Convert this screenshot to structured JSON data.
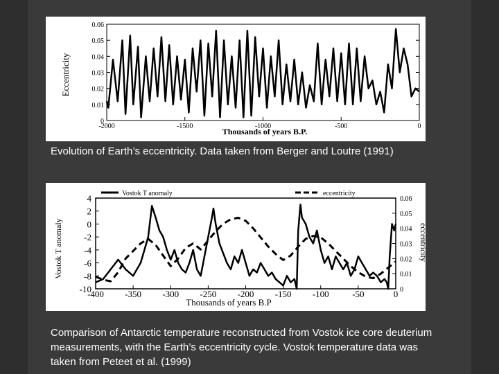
{
  "captions": {
    "top": "Evolution of Earth’s eccentricity.  Data taken from Berger and Loutre (1991)",
    "bottom": "Comparison of Antarctic temperature reconstructed from Vostok ice core deuterium measurements, with the Earth’s eccentricity cycle. Vostok temperature data was taken from Peteet et al. (1999)"
  },
  "chart_data": [
    {
      "type": "line",
      "xlabel": "Thousands of years B.P.",
      "ylabel": "Eccentricity",
      "xlim": [
        -2000,
        0
      ],
      "ylim": [
        0,
        0.06
      ],
      "xticks": [
        "-2000",
        "-1500",
        "-1000",
        "-500",
        "0"
      ],
      "yticks": [
        "0",
        "0.01",
        "0.02",
        "0.03",
        "0.04",
        "0.05",
        "0.06"
      ],
      "series": [
        {
          "color": "#000000",
          "x": [
            -2000,
            -1990,
            -1960,
            -1930,
            -1900,
            -1880,
            -1850,
            -1830,
            -1800,
            -1780,
            -1750,
            -1725,
            -1700,
            -1675,
            -1650,
            -1625,
            -1600,
            -1575,
            -1550,
            -1525,
            -1500,
            -1475,
            -1450,
            -1425,
            -1400,
            -1375,
            -1350,
            -1325,
            -1300,
            -1275,
            -1250,
            -1225,
            -1200,
            -1175,
            -1150,
            -1125,
            -1100,
            -1075,
            -1050,
            -1025,
            -1000,
            -975,
            -950,
            -925,
            -900,
            -875,
            -850,
            -825,
            -800,
            -775,
            -750,
            -725,
            -700,
            -675,
            -650,
            -625,
            -600,
            -575,
            -550,
            -525,
            -500,
            -475,
            -450,
            -425,
            -400,
            -375,
            -350,
            -325,
            -300,
            -275,
            -250,
            -225,
            -200,
            -175,
            -150,
            -125,
            -100,
            -75,
            -50,
            -25,
            0
          ],
          "values": [
            0.012,
            0.008,
            0.038,
            0.012,
            0.05,
            0.004,
            0.053,
            0.01,
            0.046,
            0.002,
            0.04,
            0.012,
            0.045,
            0.015,
            0.052,
            0.012,
            0.047,
            0.01,
            0.04,
            0.013,
            0.038,
            0.005,
            0.045,
            0.018,
            0.05,
            0.003,
            0.048,
            0.015,
            0.056,
            0.002,
            0.05,
            0.01,
            0.04,
            0.008,
            0.05,
            0.002,
            0.056,
            0.003,
            0.052,
            0.015,
            0.045,
            0.008,
            0.04,
            0.015,
            0.05,
            0.01,
            0.035,
            0.012,
            0.038,
            0.01,
            0.03,
            0.008,
            0.022,
            0.012,
            0.048,
            0.01,
            0.038,
            0.015,
            0.045,
            0.012,
            0.042,
            0.01,
            0.048,
            0.01,
            0.045,
            0.012,
            0.04,
            0.02,
            0.025,
            0.01,
            0.018,
            0.005,
            0.035,
            0.02,
            0.057,
            0.03,
            0.045,
            0.035,
            0.015,
            0.02,
            0.018
          ]
        }
      ]
    },
    {
      "type": "line",
      "xlabel": "Thousands of years B.P",
      "ylabel": "Vostok T anomaly",
      "y2label": "eccentricity",
      "xlim": [
        -400,
        0
      ],
      "ylim": [
        -10,
        4
      ],
      "y2lim": [
        0,
        0.06
      ],
      "xticks": [
        "-400",
        "-350",
        "-300",
        "-250",
        "-200",
        "-150",
        "-100",
        "-50",
        "0"
      ],
      "yticks": [
        "-10",
        "-8",
        "-6",
        "-4",
        "-2",
        "0",
        "2",
        "4"
      ],
      "y2ticks": [
        "0",
        "0.01",
        "0.02",
        "0.03",
        "0.04",
        "0.05",
        "0.06"
      ],
      "legend": [
        "Vostok T anomaly",
        "eccentricity"
      ],
      "legend_position": "top",
      "series": [
        {
          "name": "Vostok T anomaly",
          "axis": "left",
          "style": "solid",
          "color": "#000000",
          "x": [
            -400,
            -390,
            -380,
            -370,
            -360,
            -350,
            -340,
            -335,
            -330,
            -325,
            -320,
            -315,
            -310,
            -305,
            -300,
            -295,
            -290,
            -285,
            -280,
            -275,
            -270,
            -265,
            -260,
            -255,
            -250,
            -245,
            -243,
            -240,
            -235,
            -230,
            -225,
            -220,
            -215,
            -210,
            -205,
            -200,
            -195,
            -190,
            -185,
            -180,
            -175,
            -170,
            -165,
            -160,
            -155,
            -150,
            -145,
            -140,
            -135,
            -132,
            -130,
            -127,
            -125,
            -120,
            -115,
            -110,
            -105,
            -100,
            -95,
            -90,
            -85,
            -80,
            -75,
            -70,
            -65,
            -60,
            -55,
            -50,
            -45,
            -40,
            -35,
            -30,
            -25,
            -20,
            -15,
            -12,
            -10,
            -8,
            -5,
            -2,
            0
          ],
          "values": [
            -9,
            -8.5,
            -7,
            -5.5,
            -7,
            -8,
            -6,
            -4,
            -2,
            2.8,
            1,
            -1,
            -2,
            -4,
            -5.5,
            -4,
            -6,
            -7,
            -7.5,
            -6,
            -4,
            -7,
            -8,
            -5,
            -2,
            1,
            2.4,
            0,
            -3,
            -4.5,
            -6,
            -7,
            -5,
            -6,
            -4,
            -6,
            -8,
            -7,
            -7.5,
            -6,
            -7,
            -8,
            -7.5,
            -8.5,
            -9,
            -9.5,
            -8,
            -9,
            -8.5,
            -10,
            -1,
            3,
            1,
            0,
            -2,
            -3,
            -1,
            -4,
            -6,
            -5,
            -7,
            -5,
            -6,
            -7,
            -6,
            -8,
            -7,
            -5,
            -6,
            -7,
            -8,
            -7.5,
            -8,
            -9,
            -8.5,
            -9,
            -10,
            -5,
            0,
            -1,
            0
          ]
        },
        {
          "name": "eccentricity",
          "axis": "right",
          "style": "dashed",
          "color": "#000000",
          "x": [
            -400,
            -390,
            -380,
            -370,
            -360,
            -350,
            -340,
            -330,
            -320,
            -310,
            -300,
            -290,
            -280,
            -270,
            -260,
            -250,
            -240,
            -230,
            -220,
            -210,
            -200,
            -190,
            -180,
            -170,
            -160,
            -150,
            -140,
            -130,
            -120,
            -110,
            -100,
            -90,
            -80,
            -70,
            -60,
            -50,
            -40,
            -30,
            -20,
            -10,
            0
          ],
          "values": [
            0.008,
            0.006,
            0.005,
            0.011,
            0.02,
            0.025,
            0.03,
            0.033,
            0.029,
            0.022,
            0.015,
            0.02,
            0.027,
            0.03,
            0.026,
            0.032,
            0.038,
            0.043,
            0.046,
            0.047,
            0.045,
            0.04,
            0.034,
            0.028,
            0.023,
            0.019,
            0.022,
            0.028,
            0.033,
            0.035,
            0.034,
            0.03,
            0.025,
            0.02,
            0.015,
            0.011,
            0.008,
            0.007,
            0.01,
            0.014,
            0.018
          ]
        }
      ]
    }
  ]
}
